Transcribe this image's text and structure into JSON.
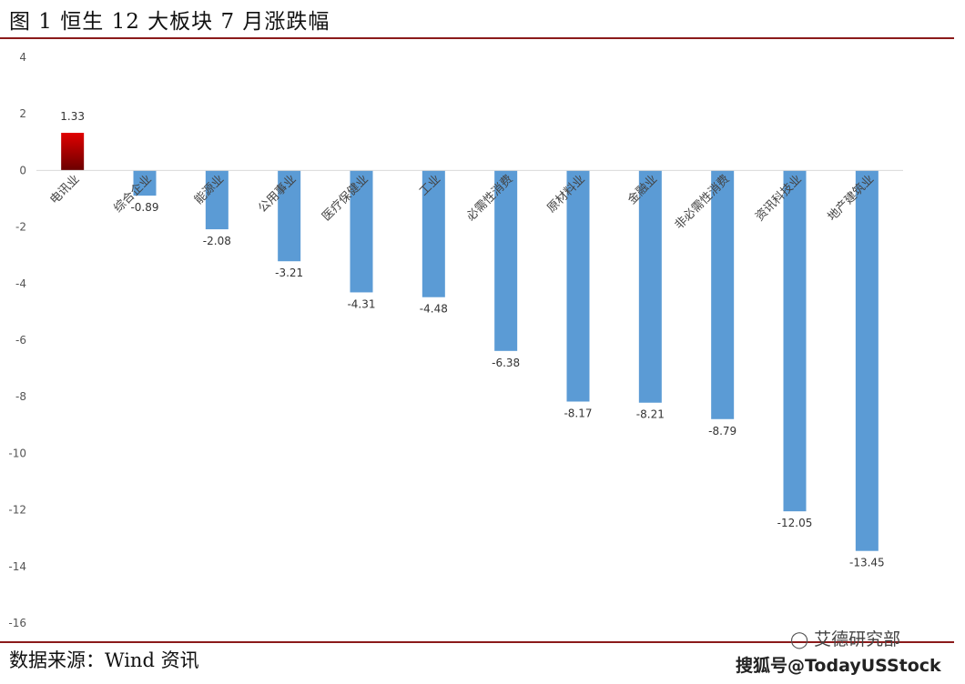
{
  "figure": {
    "title": "图 1 恒生 12 大板块 7 月涨跌幅",
    "source": "数据来源：Wind 资讯",
    "watermark_account": "艾德研究部",
    "watermark_site": "搜狐号@TodayUSStock"
  },
  "colors": {
    "positive": "#c00000",
    "negative": "#5b9bd5",
    "rule": "#8b1a1a"
  },
  "chart_data": {
    "type": "bar",
    "title": "",
    "xlabel": "",
    "ylabel": "",
    "categories": [
      "电讯业",
      "综合企业",
      "能源业",
      "公用事业",
      "医疗保健业",
      "工业",
      "必需性消费",
      "原材料业",
      "金融业",
      "非必需性消费",
      "资讯科技业",
      "地产建筑业"
    ],
    "values": [
      1.33,
      -0.89,
      -2.08,
      -3.21,
      -4.31,
      -4.48,
      -6.38,
      -8.17,
      -8.21,
      -8.79,
      -12.05,
      -13.45
    ],
    "value_labels": [
      "1.33",
      "-0.89",
      "-2.08",
      "-3.21",
      "-4.31",
      "-4.48",
      "-6.38",
      "-8.17",
      "-8.21",
      "-8.79",
      "-12.05",
      "-13.45"
    ],
    "ylim": [
      -16,
      4
    ],
    "yticks": [
      4,
      2,
      0,
      -2,
      -4,
      -6,
      -8,
      -10,
      -12,
      -14,
      -16
    ],
    "grid": false,
    "legend": "none"
  }
}
